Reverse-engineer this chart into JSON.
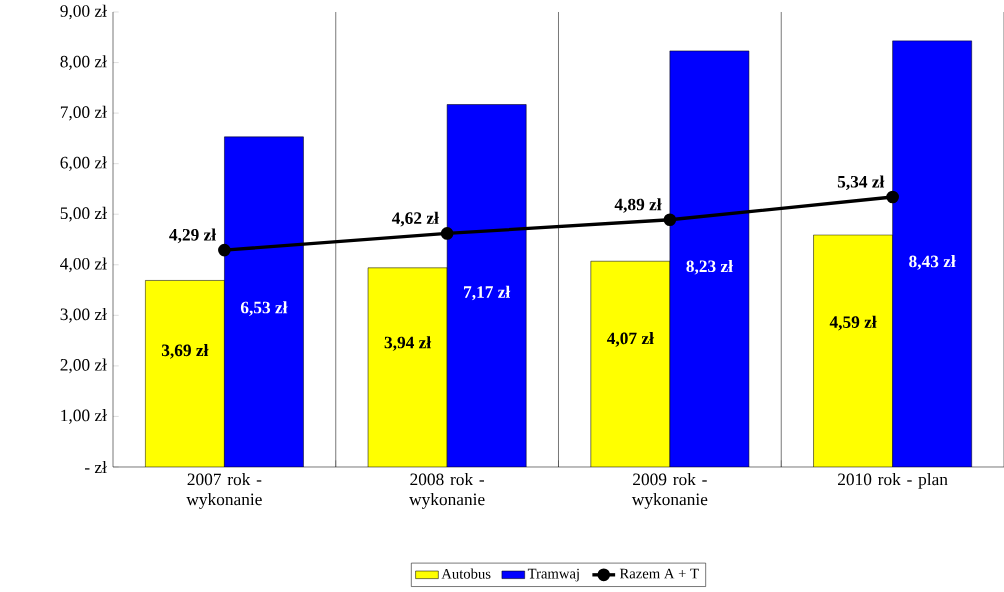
{
  "chart_data": {
    "type": "bar",
    "categories": [
      "2007 rok - wykonanie",
      "2008 rok - wykonanie",
      "2009 rok - wykonanie",
      "2010 rok - plan"
    ],
    "series": [
      {
        "name": "Autobus",
        "color": "#ffff00",
        "values": [
          3.69,
          3.94,
          4.07,
          4.59
        ],
        "value_labels": [
          "3,69 zł",
          "3,94 zł",
          "4,07 zł",
          "4,59 zł"
        ]
      },
      {
        "name": "Tramwaj",
        "color": "#0000ff",
        "values": [
          6.53,
          7.17,
          8.23,
          8.43
        ],
        "value_labels": [
          "6,53 zł",
          "7,17 zł",
          "8,23 zł",
          "8,43 zł"
        ]
      },
      {
        "name": "Razem A + T",
        "type": "line",
        "color": "#000000",
        "marker": "circle",
        "values": [
          4.29,
          4.62,
          4.89,
          5.34
        ],
        "value_labels": [
          "4,29 zł",
          "4,62 zł",
          "4,89 zł",
          "5,34 zł"
        ]
      }
    ],
    "ylim": [
      0,
      9
    ],
    "yticks": [
      {
        "value": 0,
        "label": "-  zł"
      },
      {
        "value": 1,
        "label": "1,00 zł"
      },
      {
        "value": 2,
        "label": "2,00 zł"
      },
      {
        "value": 3,
        "label": "3,00 zł"
      },
      {
        "value": 4,
        "label": "4,00 zł"
      },
      {
        "value": 5,
        "label": "5,00 zł"
      },
      {
        "value": 6,
        "label": "6,00 zł"
      },
      {
        "value": 7,
        "label": "7,00 zł"
      },
      {
        "value": 8,
        "label": "8,00 zł"
      },
      {
        "value": 9,
        "label": "9,00 zł"
      }
    ],
    "grid": "x",
    "legend": "bottom"
  }
}
